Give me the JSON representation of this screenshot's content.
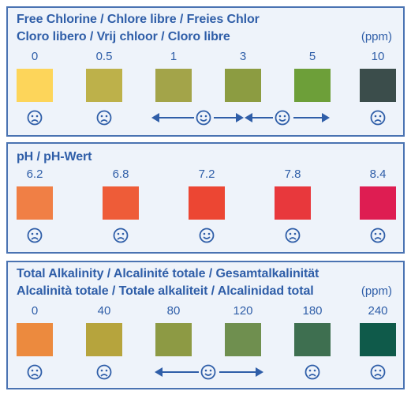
{
  "free_chlorine": {
    "title_line1": "Free Chlorine / Chlore libre / Freies Chlor",
    "title_line2": "Cloro libero / Vrij chloor / Cloro libre",
    "unit": "(ppm)",
    "scale": [
      {
        "value": "0",
        "color": "#fdd55a",
        "face": "sad-face-icon"
      },
      {
        "value": "0.5",
        "color": "#bdb14a",
        "face": "sad-face-icon"
      },
      {
        "value": "1",
        "color": "#a3a449",
        "face": "happy-face-icon"
      },
      {
        "value": "3",
        "color": "#8c9c41",
        "face": ""
      },
      {
        "value": "5",
        "color": "#6d9f39",
        "face": "happy-face-icon"
      },
      {
        "value": "10",
        "color": "#3b4d4b",
        "face": "sad-face-icon"
      }
    ]
  },
  "ph": {
    "title_line1": "pH / pH-Wert",
    "scale": [
      {
        "value": "6.2",
        "color": "#f07f45",
        "face": "sad-face-icon"
      },
      {
        "value": "6.8",
        "color": "#ee5c38",
        "face": "sad-face-icon"
      },
      {
        "value": "7.2",
        "color": "#ec4633",
        "face": "happy-face-icon"
      },
      {
        "value": "7.8",
        "color": "#e8383c",
        "face": "sad-face-icon"
      },
      {
        "value": "8.4",
        "color": "#de1d52",
        "face": "sad-face-icon"
      }
    ]
  },
  "total_alkalinity": {
    "title_line1": "Total Alkalinity / Alcalinité totale / Gesamtalkalinität",
    "title_line2": "Alcalinità totale / Totale alkaliteit / Alcalinidad total",
    "unit": "(ppm)",
    "scale": [
      {
        "value": "0",
        "color": "#ec8a3e",
        "face": "sad-face-icon"
      },
      {
        "value": "40",
        "color": "#b6a43d",
        "face": "sad-face-icon"
      },
      {
        "value": "80",
        "color": "#8d9a44",
        "face": "happy-face-icon"
      },
      {
        "value": "120",
        "color": "#6f8f4f",
        "face": ""
      },
      {
        "value": "180",
        "color": "#3e6f50",
        "face": "sad-face-icon"
      },
      {
        "value": "240",
        "color": "#0f5a4a",
        "face": "sad-face-icon"
      }
    ]
  },
  "colors": {
    "accent": "#2f5ea8",
    "border": "#4a73b2",
    "panel_bg": "#eef3fa"
  }
}
